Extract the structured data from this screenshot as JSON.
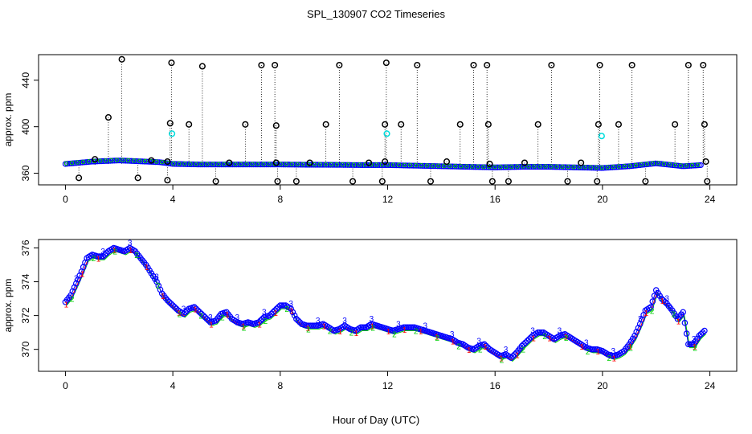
{
  "chart_data": {
    "title": "SPL_130907  CO2 Timeseries",
    "xlabel": "Hour of Day (UTC)",
    "x_ticks": [
      0,
      4,
      8,
      12,
      16,
      20,
      24
    ],
    "x_range": [
      -1,
      25
    ],
    "colors": {
      "s1": "#ff0000",
      "s2": "#00cc00",
      "s3": "#0000ff",
      "cyan": "#00dddd",
      "outlier": "#000000"
    },
    "panels": [
      {
        "type": "scatter",
        "ylabel": "approx. ppm",
        "y_ticks": [
          360,
          400,
          440
        ],
        "ylim": [
          350,
          462
        ],
        "baseline": [
          [
            0,
            368
          ],
          [
            0.5,
            369
          ],
          [
            1,
            370
          ],
          [
            1.5,
            370.5
          ],
          [
            2,
            371
          ],
          [
            2.5,
            370.5
          ],
          [
            3,
            370
          ],
          [
            3.5,
            369.5
          ],
          [
            4,
            368
          ],
          [
            5,
            367.5
          ],
          [
            6,
            367.5
          ],
          [
            7,
            367.5
          ],
          [
            8,
            367.5
          ],
          [
            9,
            367.3
          ],
          [
            10,
            367.2
          ],
          [
            11,
            367
          ],
          [
            12,
            367
          ],
          [
            13,
            366.5
          ],
          [
            14,
            366
          ],
          [
            15,
            365.5
          ],
          [
            16,
            365
          ],
          [
            17,
            365.5
          ],
          [
            18,
            365.5
          ],
          [
            19,
            365
          ],
          [
            20,
            364.5
          ],
          [
            21,
            366
          ],
          [
            22,
            368.5
          ],
          [
            23,
            366
          ],
          [
            23.7,
            367
          ]
        ],
        "outliers": [
          [
            0.5,
            356
          ],
          [
            1.1,
            372
          ],
          [
            1.6,
            408
          ],
          [
            2.1,
            458
          ],
          [
            2.7,
            356
          ],
          [
            3.2,
            371
          ],
          [
            3.8,
            354
          ],
          [
            3.9,
            403
          ],
          [
            3.95,
            455
          ],
          [
            3.8,
            370
          ],
          [
            4.6,
            402
          ],
          [
            5.1,
            452
          ],
          [
            5.6,
            353
          ],
          [
            6.1,
            369
          ],
          [
            6.7,
            402
          ],
          [
            7.3,
            453
          ],
          [
            7.8,
            453
          ],
          [
            7.85,
            401
          ],
          [
            7.9,
            353
          ],
          [
            7.85,
            369
          ],
          [
            8.6,
            353
          ],
          [
            9.1,
            369
          ],
          [
            9.7,
            402
          ],
          [
            10.2,
            453
          ],
          [
            10.7,
            353
          ],
          [
            11.3,
            369
          ],
          [
            11.8,
            353
          ],
          [
            11.9,
            402
          ],
          [
            11.95,
            455
          ],
          [
            11.9,
            370
          ],
          [
            12.5,
            402
          ],
          [
            13.1,
            453
          ],
          [
            13.6,
            353
          ],
          [
            14.2,
            370
          ],
          [
            14.7,
            402
          ],
          [
            15.2,
            453
          ],
          [
            15.7,
            453
          ],
          [
            15.75,
            402
          ],
          [
            15.8,
            368
          ],
          [
            15.9,
            353
          ],
          [
            16.5,
            353
          ],
          [
            17.1,
            369
          ],
          [
            17.6,
            402
          ],
          [
            18.1,
            453
          ],
          [
            18.7,
            353
          ],
          [
            19.2,
            369
          ],
          [
            19.8,
            353
          ],
          [
            19.85,
            402
          ],
          [
            19.9,
            453
          ],
          [
            20.6,
            402
          ],
          [
            21.1,
            453
          ],
          [
            21.6,
            353
          ],
          [
            22.7,
            402
          ],
          [
            23.2,
            453
          ],
          [
            23.75,
            453
          ],
          [
            23.8,
            402
          ],
          [
            23.85,
            370
          ],
          [
            23.9,
            353
          ]
        ],
        "cyan_points": [
          [
            3.97,
            394
          ],
          [
            11.97,
            394
          ],
          [
            19.97,
            392
          ]
        ]
      },
      {
        "type": "scatter",
        "ylabel": "approx. ppm",
        "y_ticks": [
          370,
          372,
          374,
          376
        ],
        "ylim": [
          368.7,
          376.5
        ],
        "series": [
          {
            "name": "1",
            "color": "#ff0000"
          },
          {
            "name": "2",
            "color": "#00cc00"
          },
          {
            "name": "3",
            "color": "#0000ff"
          }
        ],
        "points": [
          [
            0,
            372.8
          ],
          [
            0.2,
            373.2
          ],
          [
            0.4,
            373.9
          ],
          [
            0.6,
            374.6
          ],
          [
            0.8,
            375.4
          ],
          [
            1,
            375.6
          ],
          [
            1.2,
            375.5
          ],
          [
            1.4,
            375.5
          ],
          [
            1.6,
            375.8
          ],
          [
            1.8,
            376
          ],
          [
            2,
            375.9
          ],
          [
            2.2,
            375.8
          ],
          [
            2.4,
            376
          ],
          [
            2.6,
            375.8
          ],
          [
            2.8,
            375.4
          ],
          [
            3,
            375
          ],
          [
            3.2,
            374.5
          ],
          [
            3.4,
            374
          ],
          [
            3.6,
            373.3
          ],
          [
            3.8,
            372.9
          ],
          [
            4,
            372.6
          ],
          [
            4.2,
            372.3
          ],
          [
            4.4,
            372.1
          ],
          [
            4.6,
            372.4
          ],
          [
            4.8,
            372.5
          ],
          [
            5,
            372.2
          ],
          [
            5.2,
            371.9
          ],
          [
            5.4,
            371.6
          ],
          [
            5.6,
            371.7
          ],
          [
            5.8,
            372.1
          ],
          [
            6,
            372.2
          ],
          [
            6.2,
            371.8
          ],
          [
            6.4,
            371.6
          ],
          [
            6.6,
            371.5
          ],
          [
            6.8,
            371.6
          ],
          [
            7,
            371.5
          ],
          [
            7.2,
            371.6
          ],
          [
            7.4,
            371.9
          ],
          [
            7.6,
            372
          ],
          [
            7.8,
            372.3
          ],
          [
            8,
            372.6
          ],
          [
            8.2,
            372.6
          ],
          [
            8.4,
            372.4
          ],
          [
            8.6,
            371.8
          ],
          [
            8.8,
            371.5
          ],
          [
            9,
            371.4
          ],
          [
            9.2,
            371.4
          ],
          [
            9.4,
            371.4
          ],
          [
            9.6,
            371.5
          ],
          [
            9.8,
            371.3
          ],
          [
            10,
            371.1
          ],
          [
            10.2,
            371.2
          ],
          [
            10.4,
            371.4
          ],
          [
            10.6,
            371.2
          ],
          [
            10.8,
            371.1
          ],
          [
            11,
            371.3
          ],
          [
            11.2,
            371.3
          ],
          [
            11.4,
            371.5
          ],
          [
            11.6,
            371.4
          ],
          [
            11.8,
            371.3
          ],
          [
            12,
            371.2
          ],
          [
            12.2,
            371.1
          ],
          [
            12.4,
            371.2
          ],
          [
            12.6,
            371.3
          ],
          [
            12.8,
            371.3
          ],
          [
            13,
            371.3
          ],
          [
            13.2,
            371.2
          ],
          [
            13.4,
            371.1
          ],
          [
            13.6,
            371
          ],
          [
            13.8,
            370.9
          ],
          [
            14,
            370.8
          ],
          [
            14.2,
            370.7
          ],
          [
            14.4,
            370.6
          ],
          [
            14.6,
            370.4
          ],
          [
            14.8,
            370.3
          ],
          [
            15,
            370.1
          ],
          [
            15.2,
            370
          ],
          [
            15.4,
            370.2
          ],
          [
            15.6,
            370.3
          ],
          [
            15.8,
            370
          ],
          [
            16,
            369.8
          ],
          [
            16.2,
            369.6
          ],
          [
            16.4,
            369.7
          ],
          [
            16.6,
            369.5
          ],
          [
            16.8,
            369.8
          ],
          [
            17,
            370.2
          ],
          [
            17.2,
            370.5
          ],
          [
            17.4,
            370.8
          ],
          [
            17.6,
            371
          ],
          [
            17.8,
            371
          ],
          [
            18,
            370.8
          ],
          [
            18.2,
            370.6
          ],
          [
            18.4,
            370.8
          ],
          [
            18.6,
            370.9
          ],
          [
            18.8,
            370.7
          ],
          [
            19,
            370.5
          ],
          [
            19.2,
            370.3
          ],
          [
            19.4,
            370.1
          ],
          [
            19.6,
            370
          ],
          [
            19.8,
            370
          ],
          [
            20,
            369.9
          ],
          [
            20.2,
            369.7
          ],
          [
            20.4,
            369.6
          ],
          [
            20.6,
            369.7
          ],
          [
            20.8,
            369.9
          ],
          [
            21,
            370.3
          ],
          [
            21.2,
            370.8
          ],
          [
            21.4,
            371.5
          ],
          [
            21.6,
            372.3
          ],
          [
            21.8,
            372.5
          ],
          [
            22,
            373.5
          ],
          [
            22.2,
            373
          ],
          [
            22.4,
            372.7
          ],
          [
            22.6,
            372.3
          ],
          [
            22.8,
            371.8
          ],
          [
            23,
            372.2
          ],
          [
            23.2,
            370.3
          ],
          [
            23.4,
            370.3
          ],
          [
            23.6,
            370.8
          ],
          [
            23.8,
            371.1
          ]
        ]
      }
    ]
  }
}
